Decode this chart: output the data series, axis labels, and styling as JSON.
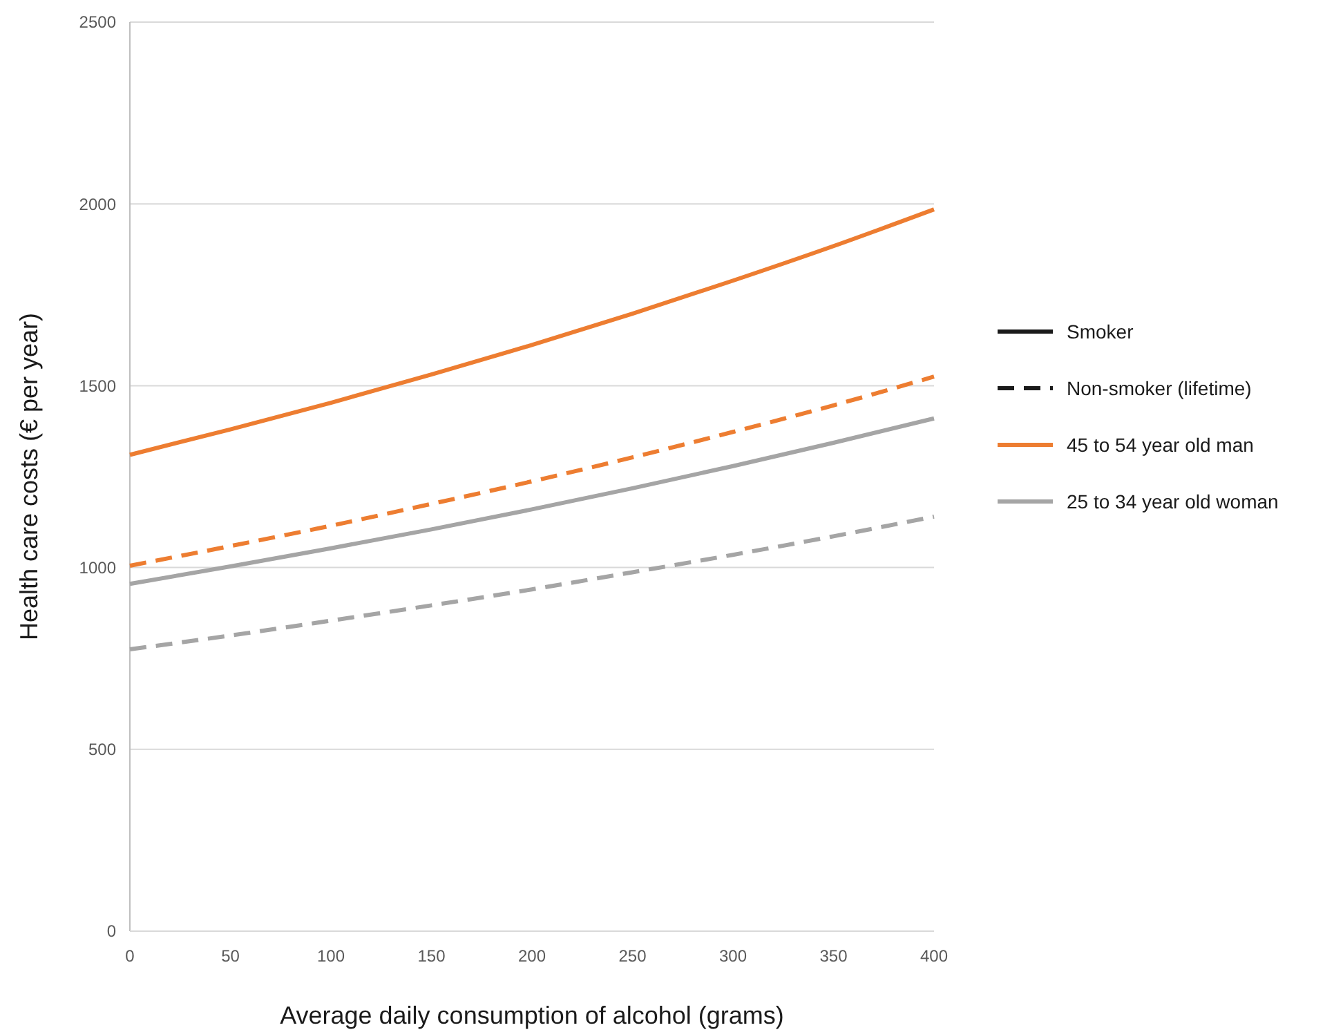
{
  "chart_data": {
    "type": "line",
    "xlabel": "Average daily consumption of alcohol (grams)",
    "ylabel": "Health care costs (€ per year)",
    "x": [
      0,
      50,
      100,
      150,
      200,
      250,
      300,
      350,
      400
    ],
    "xlim": [
      0,
      400
    ],
    "xticks": [
      0,
      50,
      100,
      150,
      200,
      250,
      300,
      350,
      400
    ],
    "ylim": [
      0,
      2500
    ],
    "yticks": [
      0,
      500,
      1000,
      1500,
      2000,
      2500
    ],
    "grid": "y",
    "legend": "right",
    "marker": "none",
    "annotations": [
      "Smoker",
      "Non-smoker (lifetime)"
    ],
    "series": [
      {
        "name": "45 to 54 year old man",
        "color": "#ed7d31",
        "line_style": "solid",
        "values": [
          1310,
          1380,
          1453,
          1531,
          1612,
          1698,
          1789,
          1884,
          1985
        ]
      },
      {
        "color": "#ed7d31",
        "line_style": "dashed",
        "values": [
          1005,
          1059,
          1115,
          1175,
          1237,
          1303,
          1373,
          1446,
          1525
        ]
      },
      {
        "name": "25 to 34 year old woman",
        "color": "#a5a5a5",
        "line_style": "solid",
        "values": [
          955,
          1003,
          1053,
          1105,
          1160,
          1218,
          1279,
          1343,
          1410
        ]
      },
      {
        "color": "#a5a5a5",
        "line_style": "dashed",
        "values": [
          775,
          813,
          854,
          896,
          940,
          987,
          1035,
          1086,
          1140
        ]
      }
    ]
  }
}
